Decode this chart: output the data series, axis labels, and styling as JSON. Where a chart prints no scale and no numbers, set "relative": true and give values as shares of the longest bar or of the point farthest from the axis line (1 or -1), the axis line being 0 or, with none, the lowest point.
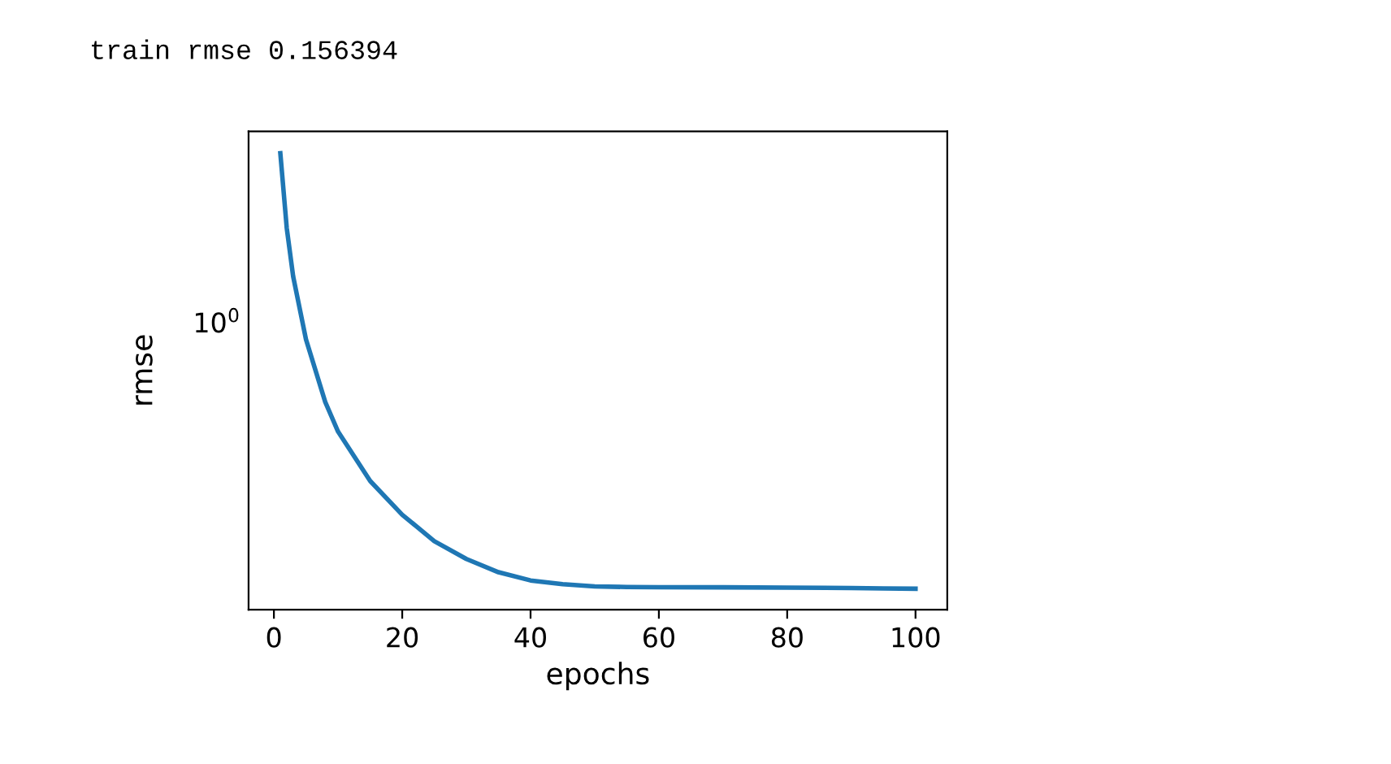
{
  "chart_data": {
    "type": "line",
    "xlabel": "epochs",
    "ylabel": "rmse",
    "relative": true,
    "annotations": [
      "train rmse 0.156394",
      "10$^{0}$"
    ],
    "x": [
      1,
      2,
      3,
      5,
      8,
      10,
      15,
      20,
      25,
      30,
      35,
      40,
      45,
      50,
      55,
      60,
      70,
      80,
      90,
      95,
      100
    ],
    "series": [
      {
        "color": "#1f77b4",
        "values": [
          1,
          0.836,
          0.73,
          0.592,
          0.455,
          0.39,
          0.282,
          0.208,
          0.15,
          0.111,
          0.082,
          0.064,
          0.056,
          0.051,
          0.0496,
          0.0493,
          0.049,
          0.0484,
          0.0475,
          0.0466,
          0.0459
        ]
      }
    ],
    "xlim": [
      -3.95,
      104.95
    ],
    "xticks": [
      0,
      20,
      40,
      60,
      80,
      100
    ],
    "grid": false,
    "legend": false
  }
}
